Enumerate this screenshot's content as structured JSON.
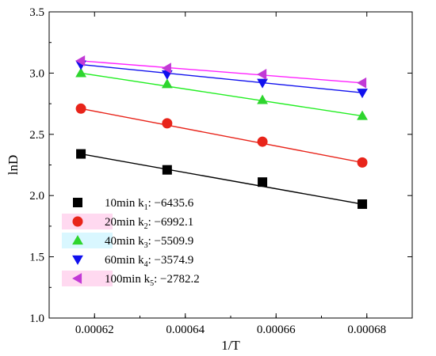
{
  "chart_data": {
    "type": "scatter",
    "xlabel": "1/T",
    "ylabel": "lnD",
    "xlim": [
      0.00061,
      0.00069
    ],
    "ylim": [
      1.0,
      3.5
    ],
    "x_ticks": [
      "0.00062",
      "0.00064",
      "0.00066",
      "0.00068"
    ],
    "y_ticks": [
      "1.0",
      "1.5",
      "2.0",
      "2.5",
      "3.0",
      "3.5"
    ],
    "x": [
      0.000617,
      0.000636,
      0.000657,
      0.000679
    ],
    "grid": false,
    "legend_position": "bottom-left",
    "series": [
      {
        "name": "10min",
        "slope_label": "k",
        "slope_index": "1",
        "slope_value": ": −6435.6",
        "marker": "square",
        "color": "#000000",
        "legend_fill": "#ffffff",
        "values": [
          2.34,
          2.21,
          2.11,
          1.93
        ],
        "fit": [
          2.34,
          1.93
        ]
      },
      {
        "name": "20min",
        "slope_label": "k",
        "slope_index": "2",
        "slope_value": ": −6992.1",
        "marker": "circle",
        "color": "#e8241a",
        "legend_fill": "#ffd9f0",
        "values": [
          2.71,
          2.59,
          2.44,
          2.27
        ],
        "fit": [
          2.71,
          2.27
        ]
      },
      {
        "name": "40min",
        "slope_label": "k",
        "slope_index": "3",
        "slope_value": ": −5509.9",
        "marker": "triangle-up",
        "color": "#2ed52e",
        "line_color": "#22ee22",
        "legend_fill": "#d9f7ff",
        "values": [
          3.0,
          2.91,
          2.78,
          2.65
        ],
        "fit": [
          3.0,
          2.65
        ]
      },
      {
        "name": "60min",
        "slope_label": "k",
        "slope_index": "4",
        "slope_value": ": −3574.9",
        "marker": "triangle-down",
        "color": "#1010ee",
        "legend_fill": "#ffffff",
        "values": [
          3.07,
          2.99,
          2.92,
          2.84
        ],
        "fit": [
          3.07,
          2.84
        ]
      },
      {
        "name": "100min",
        "slope_label": "k",
        "slope_index": "5",
        "slope_value": ": −2782.2",
        "marker": "triangle-left",
        "color": "#c23ad6",
        "line_color": "#ff22ff",
        "legend_fill": "#ffd9f0",
        "values": [
          3.1,
          3.04,
          2.99,
          2.92
        ],
        "fit": [
          3.1,
          2.92
        ]
      }
    ]
  }
}
